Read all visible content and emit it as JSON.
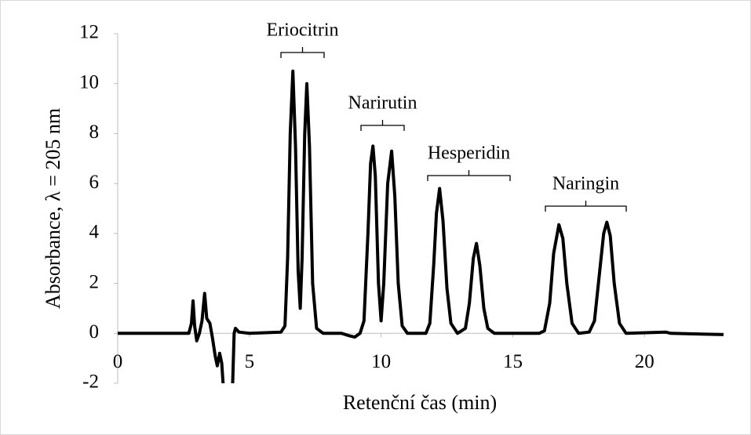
{
  "chart_data": {
    "type": "line",
    "x_label": "Retenční čas (min)",
    "y_label": "Absorbance, λ = 205 nm",
    "annotations": [
      "Eriocitrin",
      "Narirutin",
      "Hesperidin",
      "Naringin"
    ],
    "x": [
      0,
      1,
      2,
      2.7,
      2.8,
      2.86,
      2.92,
      3.0,
      3.1,
      3.2,
      3.3,
      3.38,
      3.5,
      3.6,
      3.7,
      3.78,
      3.87,
      3.95,
      4.05,
      4.2,
      4.35,
      4.42,
      4.47,
      4.6,
      5,
      6.2,
      6.35,
      6.45,
      6.55,
      6.65,
      6.75,
      6.85,
      6.93,
      7.0,
      7.1,
      7.18,
      7.28,
      7.4,
      7.55,
      7.8,
      8.5,
      8.8,
      9.0,
      9.2,
      9.35,
      9.5,
      9.6,
      9.69,
      9.78,
      9.9,
      10.0,
      10.1,
      10.25,
      10.4,
      10.52,
      10.65,
      10.8,
      11,
      11.7,
      11.85,
      12.0,
      12.1,
      12.22,
      12.35,
      12.5,
      12.65,
      12.9,
      13.2,
      13.35,
      13.5,
      13.62,
      13.75,
      13.9,
      14.05,
      14.3,
      16,
      16.2,
      16.4,
      16.55,
      16.75,
      16.9,
      17.05,
      17.25,
      17.5,
      17.9,
      18.1,
      18.3,
      18.45,
      18.57,
      18.7,
      18.85,
      19.05,
      19.3,
      20.8,
      21,
      23
    ],
    "values": [
      0,
      0,
      0,
      0,
      0.4,
      1.3,
      0.3,
      -0.3,
      0,
      0.5,
      1.6,
      0.6,
      0.4,
      -0.2,
      -0.9,
      -1.3,
      -0.8,
      -1.2,
      -2.8,
      -3.0,
      -2.5,
      0,
      0.2,
      0.05,
      0,
      0.05,
      0.3,
      3,
      8,
      10.5,
      7.5,
      2.5,
      1.0,
      3,
      8,
      10.0,
      7.5,
      2,
      0.2,
      0,
      0,
      -0.1,
      -0.15,
      0,
      0.5,
      4,
      6.8,
      7.5,
      6.3,
      2,
      0.5,
      2,
      6,
      7.3,
      5.5,
      2,
      0.3,
      0,
      0,
      0.4,
      2.8,
      4.8,
      5.8,
      4.5,
      1.8,
      0.4,
      0,
      0.2,
      1.2,
      3.0,
      3.6,
      2.7,
      1,
      0.2,
      0,
      0,
      0.1,
      1.2,
      3.2,
      4.35,
      3.8,
      2,
      0.4,
      0,
      0.05,
      0.5,
      2.5,
      4.0,
      4.45,
      3.9,
      2,
      0.4,
      0,
      0.05,
      0,
      -0.05
    ],
    "color": "#000000",
    "xlim": [
      0,
      23
    ],
    "xticks": [
      0,
      5,
      10,
      15,
      20
    ],
    "ylim": [
      -2,
      12
    ],
    "yticks": [
      -2,
      0,
      2,
      4,
      6,
      8,
      10,
      12
    ],
    "grid": false
  }
}
